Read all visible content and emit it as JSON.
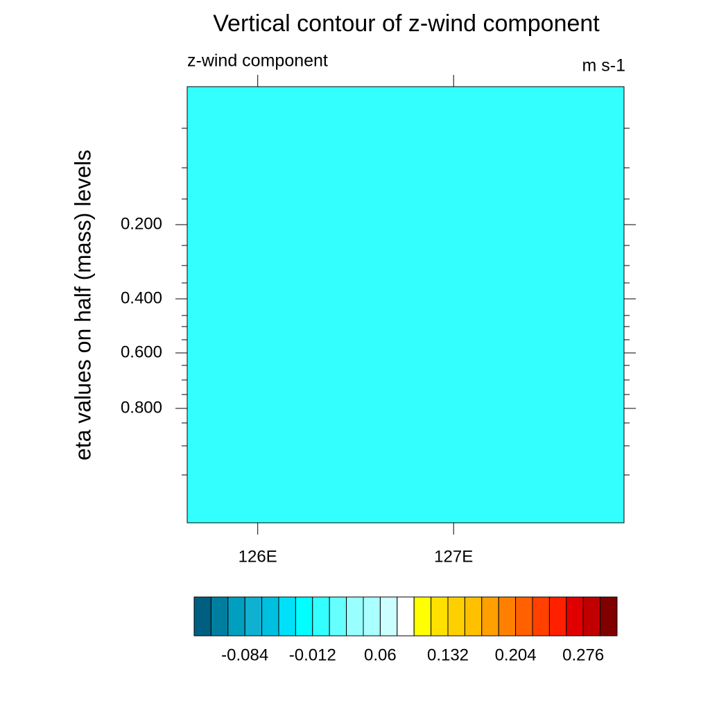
{
  "chart_data": {
    "type": "contour",
    "title": "Vertical contour of z-wind component",
    "left_string": "z-wind component",
    "right_string": "m s-1",
    "ylabel": "eta values on half (mass) levels",
    "fill_color": "#33ffff",
    "xlim": [
      125.64,
      127.87
    ],
    "xticks": [
      {
        "value": 126,
        "label": "126E"
      },
      {
        "value": 127,
        "label": "127E"
      }
    ],
    "ylim": [
      0,
      1
    ],
    "yticks": [
      {
        "value": 0.2,
        "label": "0.200"
      },
      {
        "value": 0.4,
        "label": "0.400"
      },
      {
        "value": 0.6,
        "label": "0.600"
      },
      {
        "value": 0.8,
        "label": "0.800"
      }
    ],
    "colorbar": {
      "levels": [
        -0.12,
        -0.102,
        -0.084,
        -0.066,
        -0.048,
        -0.03,
        -0.012,
        0.006,
        0.024,
        0.042,
        0.06,
        0.078,
        0.096,
        0.114,
        0.132,
        0.15,
        0.168,
        0.186,
        0.204,
        0.222,
        0.24,
        0.258,
        0.276,
        0.294
      ],
      "colors": [
        "#005f80",
        "#007ea0",
        "#009fc0",
        "#10b0d0",
        "#00c0e0",
        "#00e0f8",
        "#00ffff",
        "#33ffff",
        "#66ffff",
        "#99ffff",
        "#aaffff",
        "#ccffff",
        "#ffffff",
        "#ffff00",
        "#ffe000",
        "#ffd000",
        "#ffc000",
        "#ffa000",
        "#ff8000",
        "#ff6000",
        "#ff4000",
        "#ff2000",
        "#e00000",
        "#c00000",
        "#800000"
      ],
      "ticks": [
        {
          "value": -0.084,
          "label": "-0.084"
        },
        {
          "value": -0.012,
          "label": "-0.012"
        },
        {
          "value": 0.06,
          "label": "0.06"
        },
        {
          "value": 0.132,
          "label": "0.132"
        },
        {
          "value": 0.204,
          "label": "0.204"
        },
        {
          "value": 0.276,
          "label": "0.276"
        }
      ]
    }
  }
}
